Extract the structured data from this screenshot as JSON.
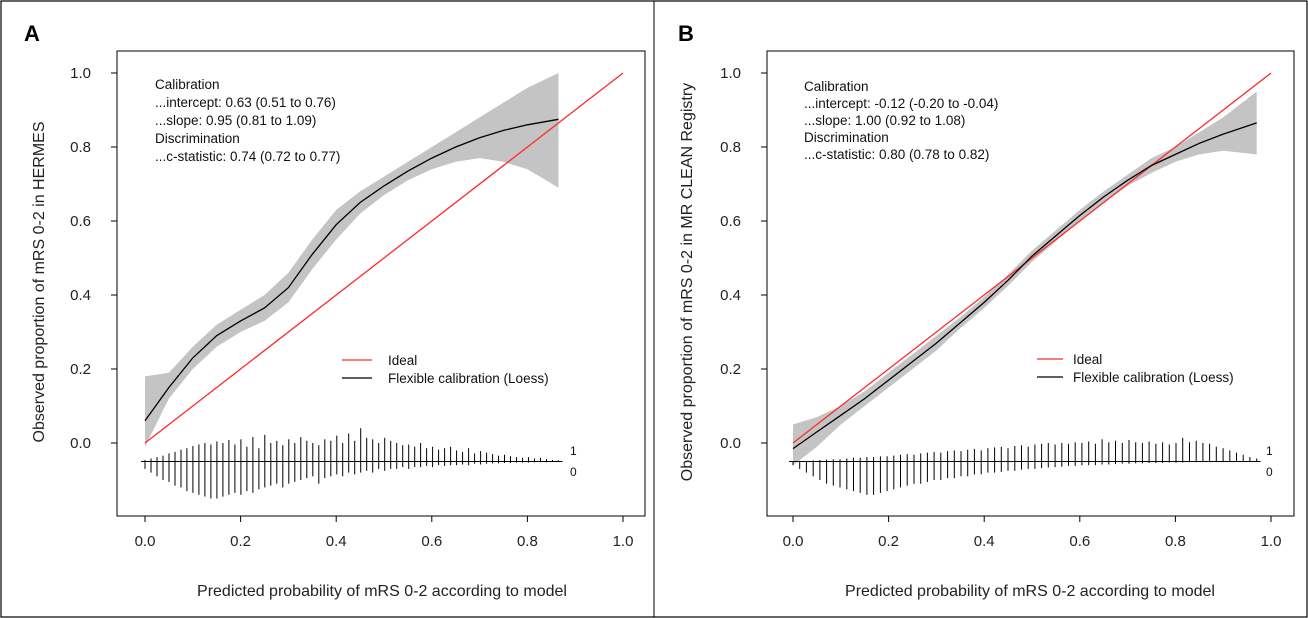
{
  "chart_data": [
    {
      "type": "line",
      "panel_label": "A",
      "xlabel": "Predicted probability of mRS 0-2 according to model",
      "ylabel": "Observed proportion of mRS 0-2 in HERMES",
      "xlim": [
        0,
        1
      ],
      "ylim": [
        -0.2,
        1.05
      ],
      "xticks": [
        "0.0",
        "0.2",
        "0.4",
        "0.6",
        "0.8",
        "1.0"
      ],
      "yticks": [
        "0.0",
        "0.2",
        "0.4",
        "0.6",
        "0.8",
        "1.0"
      ],
      "annotation": [
        "Calibration",
        "...intercept: 0.63 (0.51 to 0.76)",
        "...slope: 0.95 (0.81 to 1.09)",
        "Discrimination",
        "...c-statistic: 0.74 (0.72 to 0.77)"
      ],
      "legend": [
        "Ideal",
        "Flexible calibration (Loess)"
      ],
      "legend_position": "lower-right",
      "series": [
        {
          "name": "Ideal",
          "color": "#ff2a2a",
          "x": [
            0,
            1
          ],
          "y": [
            0,
            1
          ]
        },
        {
          "name": "Flexible calibration (Loess)",
          "color": "#000000",
          "x": [
            0.0,
            0.05,
            0.1,
            0.15,
            0.2,
            0.25,
            0.3,
            0.35,
            0.4,
            0.45,
            0.5,
            0.55,
            0.6,
            0.65,
            0.7,
            0.75,
            0.8,
            0.865
          ],
          "y": [
            0.06,
            0.15,
            0.23,
            0.29,
            0.33,
            0.365,
            0.42,
            0.51,
            0.59,
            0.65,
            0.695,
            0.735,
            0.77,
            0.8,
            0.825,
            0.845,
            0.86,
            0.875
          ],
          "ci_lower": [
            -0.01,
            0.12,
            0.2,
            0.26,
            0.3,
            0.33,
            0.38,
            0.47,
            0.55,
            0.62,
            0.67,
            0.71,
            0.74,
            0.76,
            0.77,
            0.76,
            0.74,
            0.69
          ],
          "ci_upper": [
            0.18,
            0.19,
            0.26,
            0.32,
            0.36,
            0.4,
            0.46,
            0.55,
            0.63,
            0.68,
            0.72,
            0.76,
            0.8,
            0.84,
            0.88,
            0.92,
            0.96,
            1.0
          ]
        }
      ],
      "spike_labels": [
        "1",
        "0"
      ],
      "spikes_range": [
        0.0,
        0.865
      ],
      "spikes_up": [
        0.004,
        0.008,
        0.012,
        0.016,
        0.022,
        0.026,
        0.032,
        0.036,
        0.042,
        0.046,
        0.05,
        0.046,
        0.054,
        0.05,
        0.058,
        0.046,
        0.06,
        0.04,
        0.066,
        0.036,
        0.072,
        0.05,
        0.056,
        0.044,
        0.06,
        0.05,
        0.066,
        0.056,
        0.05,
        0.044,
        0.06,
        0.056,
        0.07,
        0.05,
        0.076,
        0.056,
        0.09,
        0.064,
        0.06,
        0.05,
        0.064,
        0.056,
        0.05,
        0.044,
        0.046,
        0.04,
        0.05,
        0.036,
        0.04,
        0.032,
        0.036,
        0.04,
        0.03,
        0.026,
        0.036,
        0.022,
        0.028,
        0.024,
        0.02,
        0.016,
        0.018,
        0.014,
        0.012,
        0.01,
        0.012,
        0.008,
        0.01,
        0.006,
        0.004,
        0.003
      ],
      "spikes_down": [
        0.02,
        0.03,
        0.04,
        0.05,
        0.055,
        0.065,
        0.07,
        0.08,
        0.085,
        0.09,
        0.095,
        0.1,
        0.1,
        0.095,
        0.09,
        0.085,
        0.09,
        0.08,
        0.085,
        0.075,
        0.07,
        0.065,
        0.06,
        0.07,
        0.06,
        0.055,
        0.05,
        0.045,
        0.04,
        0.06,
        0.045,
        0.04,
        0.035,
        0.04,
        0.03,
        0.035,
        0.03,
        0.025,
        0.03,
        0.02,
        0.025,
        0.02,
        0.02,
        0.015,
        0.02,
        0.015,
        0.015,
        0.012,
        0.015,
        0.01,
        0.012,
        0.01,
        0.01,
        0.008,
        0.01,
        0.006,
        0.008,
        0.006,
        0.005,
        0.005,
        0.004,
        0.004,
        0.003,
        0.003,
        0.003,
        0.002,
        0.002,
        0.002,
        0.001,
        0.001
      ]
    },
    {
      "type": "line",
      "panel_label": "B",
      "xlabel": "Predicted probability of mRS 0-2 according to model",
      "ylabel": "Observed proportion of mRS 0-2 in MR CLEAN Registry",
      "xlim": [
        0,
        1
      ],
      "ylim": [
        -0.2,
        1.05
      ],
      "xticks": [
        "0.0",
        "0.2",
        "0.4",
        "0.6",
        "0.8",
        "1.0"
      ],
      "yticks": [
        "0.0",
        "0.2",
        "0.4",
        "0.6",
        "0.8",
        "1.0"
      ],
      "annotation": [
        "Calibration",
        "...intercept: -0.12 (-0.20 to -0.04)",
        "...slope: 1.00 (0.92 to 1.08)",
        "Discrimination",
        "...c-statistic: 0.80 (0.78 to 0.82)"
      ],
      "legend": [
        "Ideal",
        "Flexible calibration (Loess)"
      ],
      "legend_position": "lower-right",
      "series": [
        {
          "name": "Ideal",
          "color": "#ff2a2a",
          "x": [
            0,
            1
          ],
          "y": [
            0,
            1
          ]
        },
        {
          "name": "Flexible calibration (Loess)",
          "color": "#000000",
          "x": [
            0.0,
            0.05,
            0.1,
            0.15,
            0.2,
            0.25,
            0.3,
            0.35,
            0.4,
            0.45,
            0.5,
            0.55,
            0.6,
            0.65,
            0.7,
            0.75,
            0.8,
            0.85,
            0.9,
            0.97
          ],
          "y": [
            -0.015,
            0.03,
            0.075,
            0.12,
            0.17,
            0.22,
            0.27,
            0.325,
            0.38,
            0.44,
            0.505,
            0.56,
            0.615,
            0.665,
            0.71,
            0.75,
            0.78,
            0.81,
            0.835,
            0.865
          ],
          "ci_lower": [
            -0.06,
            -0.01,
            0.05,
            0.1,
            0.15,
            0.2,
            0.25,
            0.31,
            0.365,
            0.425,
            0.49,
            0.545,
            0.6,
            0.65,
            0.695,
            0.73,
            0.76,
            0.78,
            0.79,
            0.78
          ],
          "ci_upper": [
            0.05,
            0.07,
            0.1,
            0.14,
            0.19,
            0.24,
            0.29,
            0.34,
            0.395,
            0.455,
            0.52,
            0.575,
            0.63,
            0.68,
            0.725,
            0.77,
            0.8,
            0.84,
            0.88,
            0.95
          ]
        }
      ],
      "spike_labels": [
        "1",
        "0"
      ],
      "spikes_range": [
        0.0,
        0.97
      ],
      "spikes_up": [
        0.001,
        0.002,
        0.002,
        0.003,
        0.004,
        0.005,
        0.006,
        0.006,
        0.008,
        0.01,
        0.01,
        0.012,
        0.012,
        0.014,
        0.014,
        0.016,
        0.018,
        0.02,
        0.018,
        0.022,
        0.024,
        0.026,
        0.024,
        0.028,
        0.03,
        0.028,
        0.032,
        0.034,
        0.03,
        0.036,
        0.038,
        0.04,
        0.036,
        0.042,
        0.044,
        0.04,
        0.046,
        0.048,
        0.05,
        0.046,
        0.05,
        0.048,
        0.052,
        0.05,
        0.054,
        0.048,
        0.06,
        0.052,
        0.056,
        0.05,
        0.058,
        0.052,
        0.05,
        0.054,
        0.048,
        0.052,
        0.046,
        0.05,
        0.064,
        0.052,
        0.056,
        0.05,
        0.048,
        0.04,
        0.036,
        0.03,
        0.024,
        0.018,
        0.012,
        0.008
      ],
      "spikes_down": [
        0.01,
        0.02,
        0.03,
        0.04,
        0.05,
        0.06,
        0.065,
        0.07,
        0.075,
        0.08,
        0.085,
        0.09,
        0.09,
        0.085,
        0.08,
        0.075,
        0.07,
        0.065,
        0.06,
        0.06,
        0.055,
        0.05,
        0.05,
        0.045,
        0.045,
        0.04,
        0.04,
        0.035,
        0.035,
        0.03,
        0.03,
        0.028,
        0.025,
        0.025,
        0.022,
        0.02,
        0.02,
        0.018,
        0.016,
        0.015,
        0.014,
        0.012,
        0.012,
        0.01,
        0.01,
        0.01,
        0.008,
        0.008,
        0.007,
        0.006,
        0.006,
        0.005,
        0.005,
        0.004,
        0.004,
        0.004,
        0.003,
        0.003,
        0.003,
        0.002,
        0.002,
        0.002,
        0.002,
        0.002,
        0.001,
        0.001,
        0.001,
        0.001,
        0.001,
        0.001
      ]
    }
  ]
}
